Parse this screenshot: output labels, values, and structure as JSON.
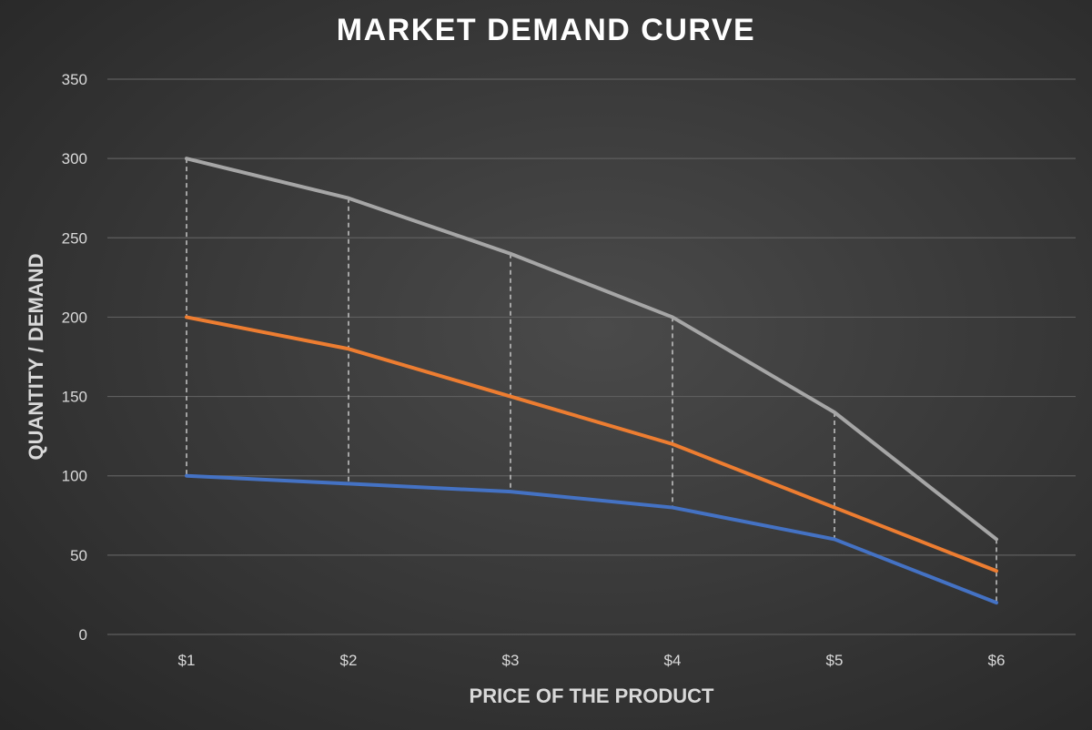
{
  "chart_data": {
    "type": "line",
    "title": "MARKET DEMAND CURVE",
    "xlabel": "PRICE OF THE PRODUCT",
    "ylabel": "QUANTITY / DEMAND",
    "categories": [
      "$1",
      "$2",
      "$3",
      "$4",
      "$5",
      "$6"
    ],
    "ylim": [
      0,
      350
    ],
    "yticks": [
      0,
      50,
      100,
      150,
      200,
      250,
      300,
      350
    ],
    "grid": true,
    "drop_lines": true,
    "series": [
      {
        "values": [
          300,
          275,
          240,
          200,
          140,
          60
        ],
        "color": "#a6a6a6"
      },
      {
        "values": [
          200,
          180,
          150,
          120,
          80,
          40
        ],
        "color": "#ed7d31"
      },
      {
        "values": [
          100,
          95,
          90,
          80,
          60,
          20
        ],
        "color": "#4472c4"
      }
    ]
  }
}
